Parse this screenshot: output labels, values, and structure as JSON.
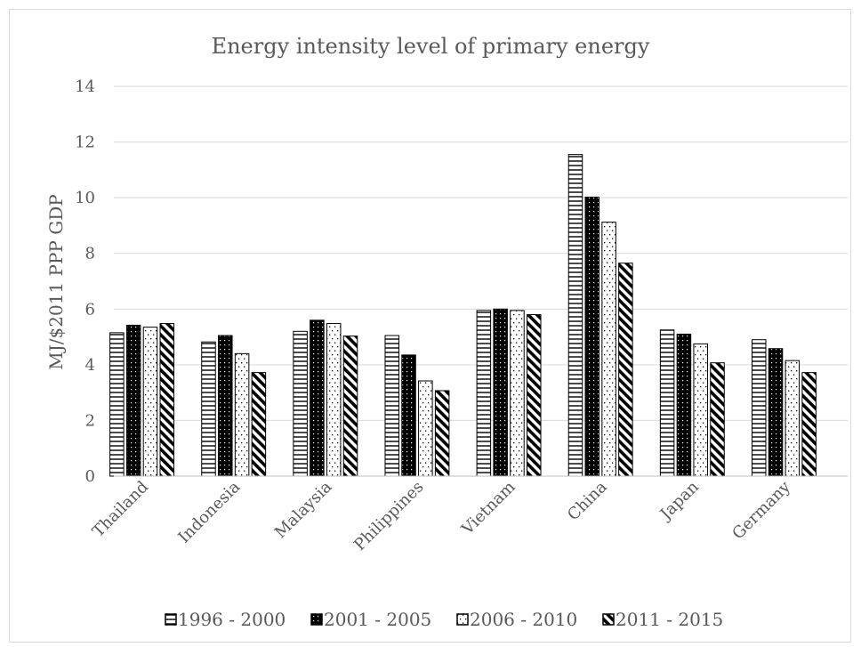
{
  "chart_data": {
    "type": "bar",
    "title": "Energy intensity level of primary energy",
    "xlabel": "",
    "ylabel": "MJ/$2011 PPP GDP",
    "ylim": [
      0,
      14
    ],
    "yticks": [
      "0",
      "2",
      "4",
      "6",
      "8",
      "10",
      "12",
      "14"
    ],
    "grid": true,
    "legend_position": "bottom",
    "categories": [
      "Thailand",
      "Indonesia",
      "Malaysia",
      "Philippines",
      "Vietnam",
      "China",
      "Japan",
      "Germany"
    ],
    "series": [
      {
        "name": "1996 - 2000",
        "pattern": "horizontal-lines",
        "values": [
          5.15,
          4.82,
          5.2,
          5.05,
          5.95,
          11.55,
          5.25,
          4.9
        ]
      },
      {
        "name": "2001 - 2005",
        "pattern": "dots-on-black",
        "values": [
          5.42,
          5.05,
          5.6,
          4.35,
          6.0,
          10.02,
          5.1,
          4.58
        ]
      },
      {
        "name": "2006 - 2010",
        "pattern": "dots-on-white",
        "values": [
          5.35,
          4.4,
          5.48,
          3.42,
          5.95,
          9.12,
          4.75,
          4.15
        ]
      },
      {
        "name": "2011 - 2015",
        "pattern": "diagonal-stripes",
        "values": [
          5.48,
          3.72,
          5.03,
          3.07,
          5.8,
          7.65,
          4.07,
          3.72
        ]
      }
    ]
  }
}
